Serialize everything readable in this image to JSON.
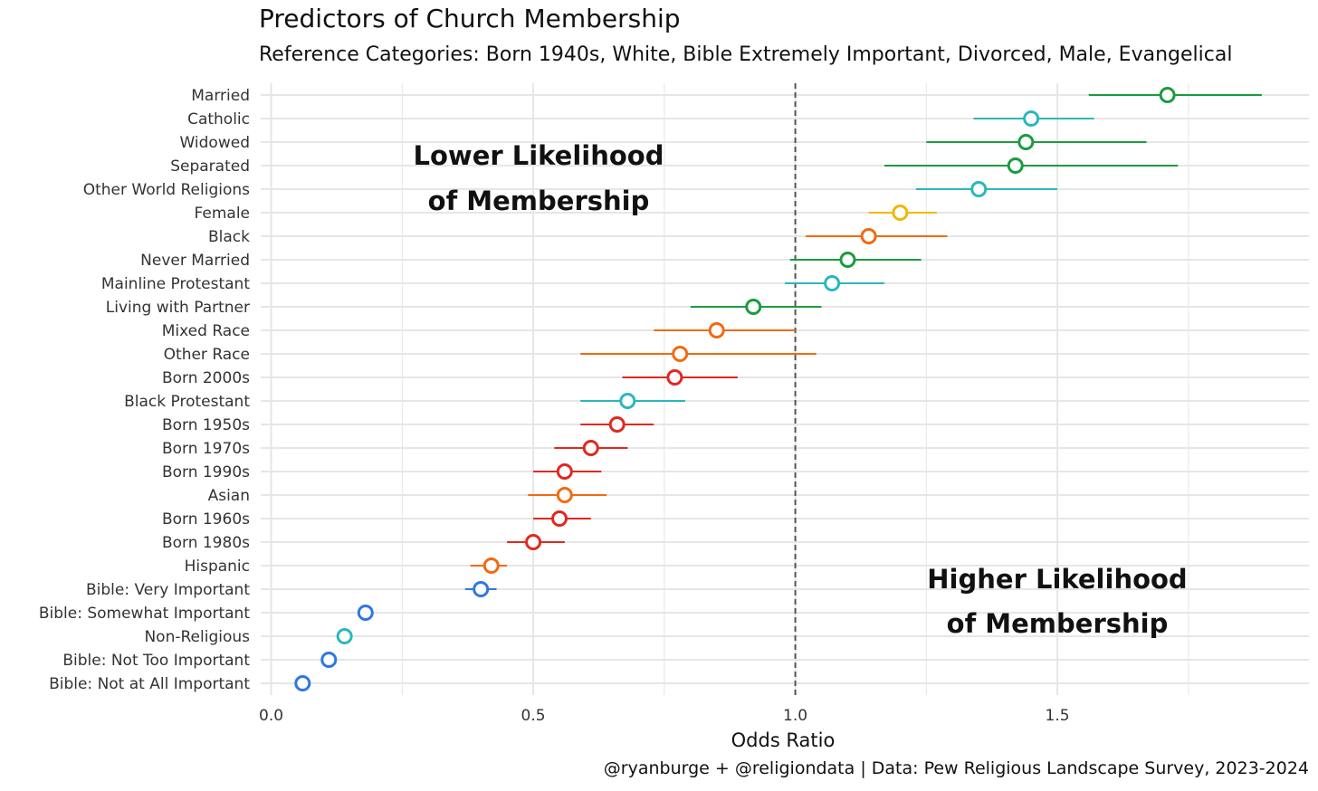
{
  "chart_data": {
    "type": "forest-plot",
    "title": "Predictors of Church Membership",
    "subtitle": "Reference Categories: Born 1940s, White, Bible Extremely Important, Divorced, Male, Evangelical",
    "xlabel": "Odds Ratio",
    "ylabel": "",
    "xlim": [
      -0.02,
      1.98
    ],
    "x_ticks": [
      0.0,
      0.5,
      1.0,
      1.5
    ],
    "x_tick_labels": [
      "0.0",
      "0.5",
      "1.0",
      "1.5"
    ],
    "reference_line": 1.0,
    "grid": true,
    "caption": "@ryanburge + @religiondata | Data: Pew Religious Landscape Survey, 2023-2024",
    "annotations": {
      "lower": [
        "Lower Likelihood",
        "of Membership"
      ],
      "higher": [
        "Higher Likelihood",
        "of Membership"
      ]
    },
    "colors": {
      "marital": "#1a9c3e",
      "religion": "#2bb7bf",
      "gender": "#f2b705",
      "race": "#f26a0f",
      "generation": "#e0281f",
      "bible": "#2e78e4",
      "refline": "#555555",
      "grid": "#e6e6e6"
    },
    "points": [
      {
        "label": "Married",
        "group": "marital",
        "value": 1.71,
        "low": 1.56,
        "high": 1.89
      },
      {
        "label": "Catholic",
        "group": "religion",
        "value": 1.45,
        "low": 1.34,
        "high": 1.57
      },
      {
        "label": "Widowed",
        "group": "marital",
        "value": 1.44,
        "low": 1.25,
        "high": 1.67
      },
      {
        "label": "Separated",
        "group": "marital",
        "value": 1.42,
        "low": 1.17,
        "high": 1.73
      },
      {
        "label": "Other World Religions",
        "group": "religion",
        "value": 1.35,
        "low": 1.23,
        "high": 1.5
      },
      {
        "label": "Female",
        "group": "gender",
        "value": 1.2,
        "low": 1.14,
        "high": 1.27
      },
      {
        "label": "Black",
        "group": "race",
        "value": 1.14,
        "low": 1.02,
        "high": 1.29
      },
      {
        "label": "Never Married",
        "group": "marital",
        "value": 1.1,
        "low": 0.99,
        "high": 1.24
      },
      {
        "label": "Mainline Protestant",
        "group": "religion",
        "value": 1.07,
        "low": 0.98,
        "high": 1.17
      },
      {
        "label": "Living with Partner",
        "group": "marital",
        "value": 0.92,
        "low": 0.8,
        "high": 1.05
      },
      {
        "label": "Mixed Race",
        "group": "race",
        "value": 0.85,
        "low": 0.73,
        "high": 1.0
      },
      {
        "label": "Other Race",
        "group": "race",
        "value": 0.78,
        "low": 0.59,
        "high": 1.04
      },
      {
        "label": "Born 2000s",
        "group": "generation",
        "value": 0.77,
        "low": 0.67,
        "high": 0.89
      },
      {
        "label": "Black Protestant",
        "group": "religion",
        "value": 0.68,
        "low": 0.59,
        "high": 0.79
      },
      {
        "label": "Born 1950s",
        "group": "generation",
        "value": 0.66,
        "low": 0.59,
        "high": 0.73
      },
      {
        "label": "Born 1970s",
        "group": "generation",
        "value": 0.61,
        "low": 0.54,
        "high": 0.68
      },
      {
        "label": "Born 1990s",
        "group": "generation",
        "value": 0.56,
        "low": 0.5,
        "high": 0.63
      },
      {
        "label": "Asian",
        "group": "race",
        "value": 0.56,
        "low": 0.49,
        "high": 0.64
      },
      {
        "label": "Born 1960s",
        "group": "generation",
        "value": 0.55,
        "low": 0.5,
        "high": 0.61
      },
      {
        "label": "Born 1980s",
        "group": "generation",
        "value": 0.5,
        "low": 0.45,
        "high": 0.56
      },
      {
        "label": "Hispanic",
        "group": "race",
        "value": 0.42,
        "low": 0.38,
        "high": 0.45
      },
      {
        "label": "Bible: Very Important",
        "group": "bible",
        "value": 0.4,
        "low": 0.37,
        "high": 0.43
      },
      {
        "label": "Bible: Somewhat Important",
        "group": "bible",
        "value": 0.18,
        "low": 0.17,
        "high": 0.19
      },
      {
        "label": "Non-Religious",
        "group": "religion",
        "value": 0.14,
        "low": 0.13,
        "high": 0.15
      },
      {
        "label": "Bible: Not Too Important",
        "group": "bible",
        "value": 0.11,
        "low": 0.1,
        "high": 0.12
      },
      {
        "label": "Bible: Not at All Important",
        "group": "bible",
        "value": 0.06,
        "low": 0.05,
        "high": 0.07
      }
    ]
  }
}
